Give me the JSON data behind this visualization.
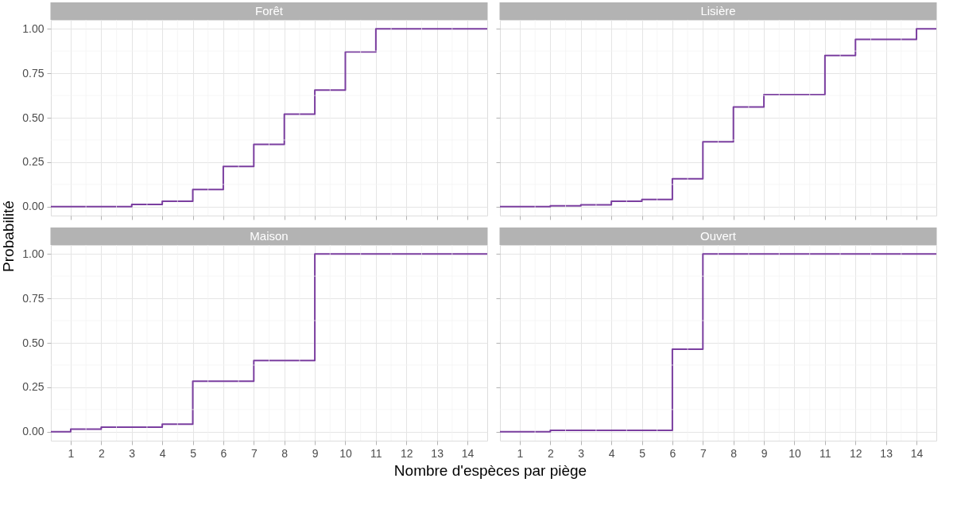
{
  "chart_data": [
    {
      "type": "step",
      "title": "Forêt",
      "ylabel": "Probabilité",
      "x": [
        0.35,
        1,
        2,
        3,
        4,
        5,
        6,
        7,
        8,
        9,
        10,
        11,
        12,
        13,
        14,
        14.65
      ],
      "values": [
        0,
        0,
        0,
        0.013,
        0.03,
        0.096,
        0.226,
        0.35,
        0.52,
        0.655,
        0.87,
        1,
        1,
        1,
        1,
        1
      ],
      "color": "#7b3fa0",
      "xlim": [
        0.35,
        14.65
      ],
      "ylim": [
        -0.05,
        1.05
      ],
      "xticks": [
        1,
        2,
        3,
        4,
        5,
        6,
        7,
        8,
        9,
        10,
        11,
        12,
        13,
        14
      ],
      "yticks": [
        {
          "value": 0,
          "label": "0.00"
        },
        {
          "value": 0.25,
          "label": "0.25"
        },
        {
          "value": 0.5,
          "label": "0.50"
        },
        {
          "value": 0.75,
          "label": "0.75"
        },
        {
          "value": 1,
          "label": "1.00"
        }
      ],
      "grid": true,
      "tick_labels": "y"
    },
    {
      "type": "step",
      "title": "Lisière",
      "x": [
        0.35,
        1,
        2,
        3,
        4,
        5,
        6,
        7,
        8,
        9,
        10,
        11,
        12,
        13,
        14,
        14.65
      ],
      "values": [
        0,
        0,
        0.005,
        0.01,
        0.03,
        0.04,
        0.157,
        0.365,
        0.56,
        0.63,
        0.63,
        0.85,
        0.94,
        0.94,
        1,
        1
      ],
      "color": "#7b3fa0",
      "xlim": [
        0.35,
        14.65
      ],
      "ylim": [
        -0.05,
        1.05
      ],
      "xticks": [
        1,
        2,
        3,
        4,
        5,
        6,
        7,
        8,
        9,
        10,
        11,
        12,
        13,
        14
      ],
      "yticks": [
        {
          "value": 0,
          "label": null
        },
        {
          "value": 0.25,
          "label": null
        },
        {
          "value": 0.5,
          "label": null
        },
        {
          "value": 0.75,
          "label": null
        },
        {
          "value": 1,
          "label": null
        }
      ],
      "grid": true,
      "tick_labels": false
    },
    {
      "type": "step",
      "title": "Maison",
      "xlabel": "Nombre d'espèces par piège",
      "x": [
        0.35,
        1,
        2,
        3,
        4,
        5,
        6,
        7,
        8,
        9,
        10,
        11,
        12,
        13,
        14,
        14.65
      ],
      "values": [
        0,
        0.015,
        0.026,
        0.026,
        0.043,
        0.284,
        0.284,
        0.4,
        0.4,
        1,
        1,
        1,
        1,
        1,
        1,
        1
      ],
      "color": "#7b3fa0",
      "xlim": [
        0.35,
        14.65
      ],
      "ylim": [
        -0.05,
        1.05
      ],
      "xticks": [
        1,
        2,
        3,
        4,
        5,
        6,
        7,
        8,
        9,
        10,
        11,
        12,
        13,
        14
      ],
      "yticks": [
        {
          "value": 0,
          "label": "0.00"
        },
        {
          "value": 0.25,
          "label": "0.25"
        },
        {
          "value": 0.5,
          "label": "0.50"
        },
        {
          "value": 0.75,
          "label": "0.75"
        },
        {
          "value": 1,
          "label": "1.00"
        }
      ],
      "grid": true
    },
    {
      "type": "step",
      "title": "Ouvert",
      "x": [
        0.35,
        1,
        2,
        3,
        4,
        5,
        6,
        7,
        8,
        9,
        10,
        11,
        12,
        13,
        14,
        14.65
      ],
      "values": [
        0,
        0,
        0.008,
        0.008,
        0.008,
        0.008,
        0.464,
        1,
        1,
        1,
        1,
        1,
        1,
        1,
        1,
        1
      ],
      "color": "#7b3fa0",
      "xlim": [
        0.35,
        14.65
      ],
      "ylim": [
        -0.05,
        1.05
      ],
      "xticks": [
        1,
        2,
        3,
        4,
        5,
        6,
        7,
        8,
        9,
        10,
        11,
        12,
        13,
        14
      ],
      "yticks": [
        {
          "value": 0,
          "label": null
        },
        {
          "value": 0.25,
          "label": null
        },
        {
          "value": 0.5,
          "label": null
        },
        {
          "value": 0.75,
          "label": null
        },
        {
          "value": 1,
          "label": null
        }
      ],
      "grid": true,
      "tick_labels": "x"
    }
  ]
}
